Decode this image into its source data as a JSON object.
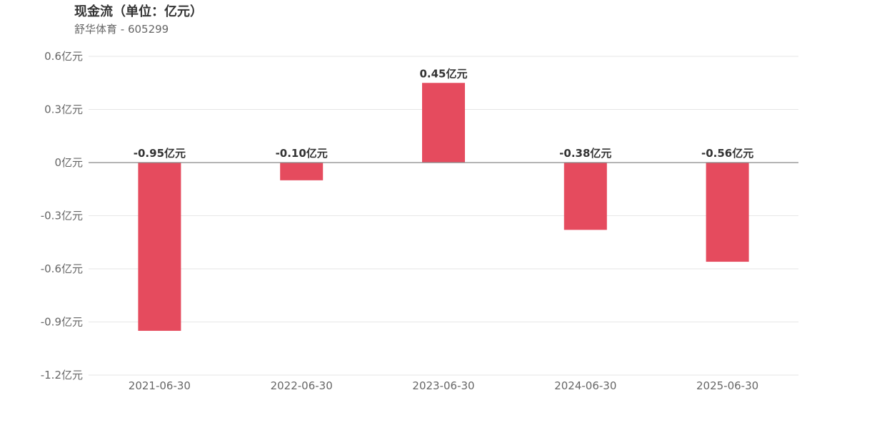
{
  "chart_data": {
    "type": "bar",
    "title": "现金流（单位：亿元）",
    "subtitle": "舒华体育 - 605299",
    "categories": [
      "2021-06-30",
      "2022-06-30",
      "2023-06-30",
      "2024-06-30",
      "2025-06-30"
    ],
    "values": [
      -0.95,
      -0.1,
      0.45,
      -0.38,
      -0.56
    ],
    "data_labels": [
      "-0.95亿元",
      "-0.10亿元",
      "0.45亿元",
      "-0.38亿元",
      "-0.56亿元"
    ],
    "ylim": [
      -1.2,
      0.6
    ],
    "yticks": [
      {
        "value": 0.6,
        "label": "0.6亿元"
      },
      {
        "value": 0.3,
        "label": "0.3亿元"
      },
      {
        "value": 0,
        "label": "0亿元"
      },
      {
        "value": -0.3,
        "label": "-0.3亿元"
      },
      {
        "value": -0.6,
        "label": "-0.6亿元"
      },
      {
        "value": -0.9,
        "label": "-0.9亿元"
      },
      {
        "value": -1.2,
        "label": "-1.2亿元"
      }
    ],
    "grid": true,
    "bar_color": "#e54b5e"
  }
}
